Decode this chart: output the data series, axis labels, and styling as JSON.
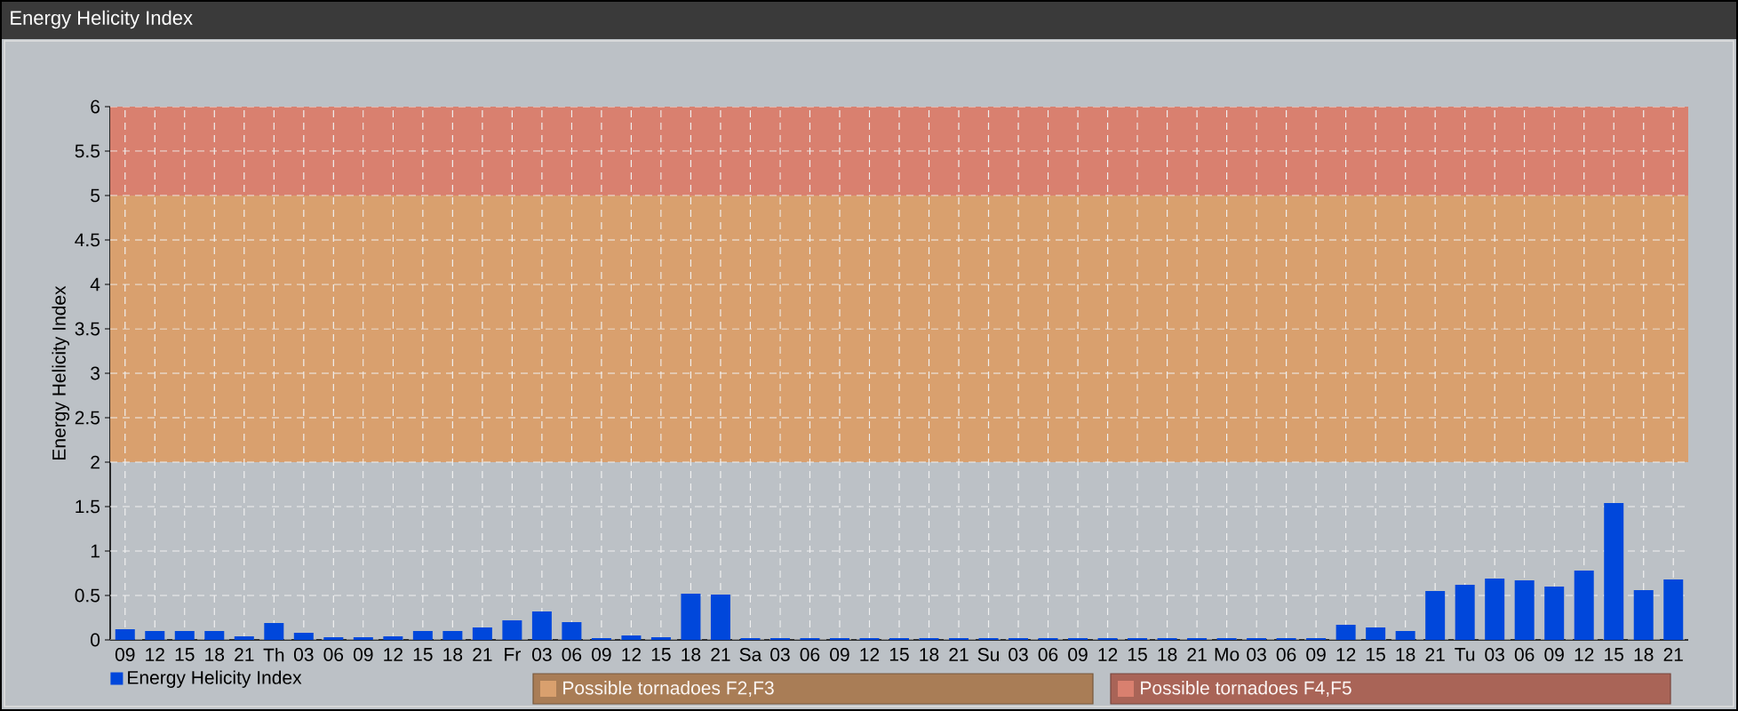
{
  "chart_data": {
    "type": "bar",
    "title": "Energy Helicity Index",
    "ylabel": "Energy Helicity Index",
    "categories": [
      "09",
      "12",
      "15",
      "18",
      "21",
      "Th",
      "03",
      "06",
      "09",
      "12",
      "15",
      "18",
      "21",
      "Fr",
      "03",
      "06",
      "09",
      "12",
      "15",
      "18",
      "21",
      "Sa",
      "03",
      "06",
      "09",
      "12",
      "15",
      "18",
      "21",
      "Su",
      "03",
      "06",
      "09",
      "12",
      "15",
      "18",
      "21",
      "Mo",
      "03",
      "06",
      "09",
      "12",
      "15",
      "18",
      "21",
      "Tu",
      "03",
      "06",
      "09",
      "12",
      "15",
      "18",
      "21"
    ],
    "series": [
      {
        "name": "Energy Helicity Index",
        "color": "#0047db",
        "values": [
          0.12,
          0.1,
          0.1,
          0.1,
          0.04,
          0.19,
          0.08,
          0.03,
          0.03,
          0.04,
          0.1,
          0.1,
          0.14,
          0.22,
          0.32,
          0.2,
          0.02,
          0.05,
          0.03,
          0.52,
          0.51,
          0.02,
          0.02,
          0.02,
          0.02,
          0.02,
          0.02,
          0.02,
          0.02,
          0.02,
          0.02,
          0.02,
          0.02,
          0.02,
          0.02,
          0.02,
          0.02,
          0.02,
          0.02,
          0.02,
          0.02,
          0.17,
          0.14,
          0.1,
          0.55,
          0.62,
          0.69,
          0.67,
          0.6,
          0.78,
          1.54,
          0.56,
          0.68
        ]
      }
    ],
    "ylim": [
      0,
      6
    ],
    "yticks": [
      0,
      0.5,
      1,
      1.5,
      2,
      2.5,
      3,
      3.5,
      4,
      4.5,
      5,
      5.5,
      6
    ],
    "grid": true,
    "legend": "bottom left",
    "bands": [
      {
        "axis": "y",
        "from": 2,
        "to": 5,
        "label": "Possible tornadoes F2,F3",
        "color": "#d9a06e"
      },
      {
        "axis": "y",
        "from": 5,
        "to": 6,
        "label": "Possible tornadoes F4,F5",
        "color": "#d9806f"
      }
    ]
  }
}
